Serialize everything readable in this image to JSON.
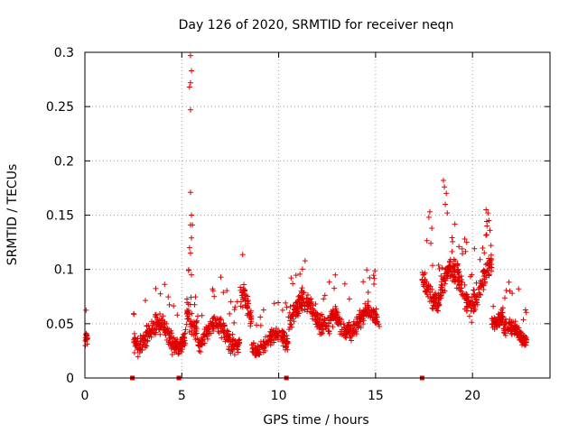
{
  "chart_data": {
    "type": "scatter",
    "title": "Day 126 of 2020, SRMTID for receiver neqn",
    "xlabel": "GPS time / hours",
    "ylabel": "SRMTID / TECUs",
    "xlim": [
      0,
      24
    ],
    "ylim": [
      0,
      0.3
    ],
    "x_ticks": [
      0,
      5,
      10,
      15,
      20
    ],
    "x_tick_labels": [
      "0",
      "5",
      "10",
      "15",
      "20"
    ],
    "y_ticks": [
      0,
      0.05,
      0.1,
      0.15,
      0.2,
      0.25,
      0.3
    ],
    "y_tick_labels": [
      "0",
      "0.05",
      "0.1",
      "0.15",
      "0.2",
      "0.25",
      "0.3"
    ],
    "grid": true,
    "marker": "+",
    "color": "#e00000",
    "zero_markers": [
      2.45,
      4.85,
      10.4,
      17.4
    ],
    "spike_points": [
      [
        5.45,
        0.297
      ],
      [
        5.5,
        0.283
      ],
      [
        5.45,
        0.272
      ],
      [
        5.4,
        0.268
      ],
      [
        5.45,
        0.247
      ],
      [
        5.45,
        0.171
      ],
      [
        5.5,
        0.15
      ],
      [
        5.55,
        0.141
      ],
      [
        5.45,
        0.141
      ],
      [
        5.5,
        0.129
      ],
      [
        5.4,
        0.12
      ],
      [
        5.45,
        0.115
      ],
      [
        5.35,
        0.099
      ],
      [
        5.5,
        0.095
      ],
      [
        18.5,
        0.182
      ],
      [
        18.55,
        0.176
      ],
      [
        18.65,
        0.17
      ],
      [
        18.6,
        0.16
      ],
      [
        18.7,
        0.152
      ],
      [
        17.8,
        0.153
      ],
      [
        17.75,
        0.148
      ],
      [
        17.9,
        0.138
      ],
      [
        17.85,
        0.124
      ],
      [
        20.7,
        0.155
      ],
      [
        20.8,
        0.152
      ],
      [
        20.85,
        0.145
      ],
      [
        20.75,
        0.14
      ],
      [
        20.9,
        0.136
      ],
      [
        19.6,
        0.128
      ],
      [
        19.7,
        0.125
      ],
      [
        19.3,
        0.121
      ],
      [
        20.1,
        0.119
      ]
    ],
    "segments": [
      {
        "start": 0.0,
        "end": 0.15,
        "count": 16,
        "base": 0.033,
        "amp": 0.012,
        "noise": 0.011
      },
      {
        "start": 2.5,
        "end": 5.25,
        "count": 230,
        "base": 0.04,
        "amp": 0.01,
        "noise": 0.012
      },
      {
        "start": 5.25,
        "end": 5.8,
        "count": 50,
        "base": 0.055,
        "amp": 0.015,
        "noise": 0.018
      },
      {
        "start": 5.8,
        "end": 8.0,
        "count": 180,
        "base": 0.04,
        "amp": 0.01,
        "noise": 0.012
      },
      {
        "start": 8.0,
        "end": 8.6,
        "count": 50,
        "base": 0.055,
        "amp": 0.02,
        "noise": 0.018
      },
      {
        "start": 8.6,
        "end": 10.5,
        "count": 160,
        "base": 0.033,
        "amp": 0.008,
        "noise": 0.01
      },
      {
        "start": 10.5,
        "end": 12.8,
        "count": 200,
        "base": 0.06,
        "amp": 0.012,
        "noise": 0.014
      },
      {
        "start": 12.8,
        "end": 15.2,
        "count": 200,
        "base": 0.052,
        "amp": 0.01,
        "noise": 0.012
      },
      {
        "start": 17.4,
        "end": 18.3,
        "count": 80,
        "base": 0.082,
        "amp": 0.012,
        "noise": 0.014
      },
      {
        "start": 18.3,
        "end": 21.0,
        "count": 240,
        "base": 0.085,
        "amp": 0.018,
        "noise": 0.018
      },
      {
        "start": 21.0,
        "end": 21.6,
        "count": 60,
        "base": 0.06,
        "amp": 0.01,
        "noise": 0.012
      },
      {
        "start": 21.6,
        "end": 22.8,
        "count": 120,
        "base": 0.04,
        "amp": 0.008,
        "noise": 0.01
      }
    ]
  }
}
